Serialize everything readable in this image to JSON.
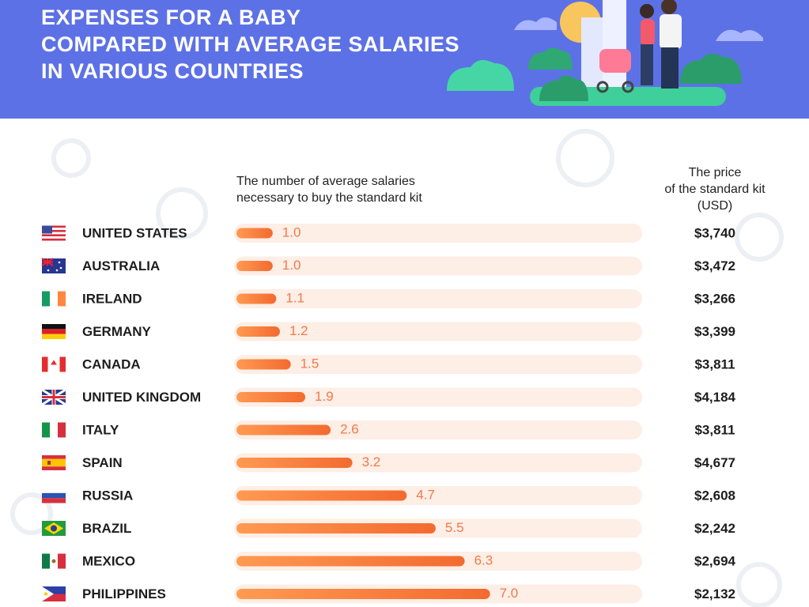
{
  "chart_data": {
    "type": "bar",
    "title": [
      "EXPENSES FOR A BABY",
      "COMPARED WITH AVERAGE SALARIES",
      "IN VARIOUS COUNTRIES"
    ],
    "value_header": [
      "The number of average salaries",
      "necessary to buy the standard kit"
    ],
    "price_header": [
      "The price",
      "of the standard kit",
      "(USD)"
    ],
    "categories": [
      "UNITED STATES",
      "AUSTRALIA",
      "IRELAND",
      "GERMANY",
      "CANADA",
      "UNITED KINGDOM",
      "ITALY",
      "SPAIN",
      "RUSSIA",
      "BRAZIL",
      "MEXICO",
      "PHILIPPINES"
    ],
    "values": [
      1.0,
      1.0,
      1.1,
      1.2,
      1.5,
      1.9,
      2.6,
      3.2,
      4.7,
      5.5,
      6.3,
      7.0
    ],
    "value_labels": [
      "1.0",
      "1.0",
      "1.1",
      "1.2",
      "1.5",
      "1.9",
      "2.6",
      "3.2",
      "4.7",
      "5.5",
      "6.3",
      "7.0"
    ],
    "prices": [
      "$3,740",
      "$3,472",
      "$3,266",
      "$3,399",
      "$3,811",
      "$4,184",
      "$3,811",
      "$4,677",
      "$2,608",
      "$2,242",
      "$2,694",
      "$2,132"
    ],
    "xlim": [
      0,
      11.2
    ],
    "color": "#f7743a"
  }
}
